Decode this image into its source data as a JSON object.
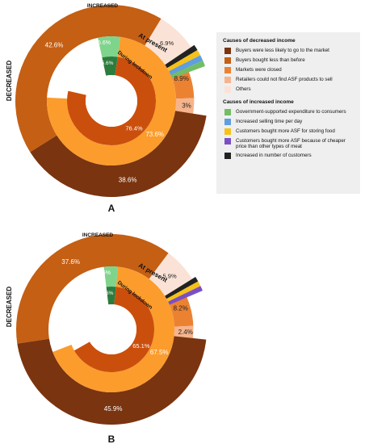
{
  "colors": {
    "less_likely": "#7a3410",
    "bought_less": "#c45f14",
    "markets_closed": "#eb8232",
    "retailers": "#f6b48c",
    "others": "#fae3d6",
    "gov": "#72bd66",
    "selling_time": "#5f9ee0",
    "cheap_meat": "#7b4fc4",
    "customers_stored": "#f5c11a",
    "num_customers": "#222222",
    "middle_orange": "#fb9c2d",
    "inner_dark": "#cb4f0c",
    "light_green": "#7fd48c",
    "dark_green": "#2c7c3e"
  },
  "legend": {
    "decreased_title": "Causes of decreased income",
    "decreased_items": [
      {
        "label": "Buyers were less likely to go to the market",
        "color": "#7a3410"
      },
      {
        "label": "Buyers bought less than before",
        "color": "#c45f14"
      },
      {
        "label": "Markets were closed",
        "color": "#eb8232"
      },
      {
        "label": "Retailers could not find ASF products to sell",
        "color": "#f6b48c"
      },
      {
        "label": "Others",
        "color": "#fae3d6"
      }
    ],
    "increased_title": "Causes of increased income",
    "increased_items": [
      {
        "label": "Government-supported expenditure to consumers",
        "color": "#72bd66"
      },
      {
        "label": "Increased selling time per day",
        "color": "#5f9ee0"
      },
      {
        "label": "Customers bought more ASF for storing food",
        "color": "#f5c11a"
      },
      {
        "label": "Customers bought more ASF because of cheaper  price than other types of meat",
        "color": "#7b4fc4"
      },
      {
        "label": "Increased in number of customers",
        "color": "#222222"
      }
    ]
  },
  "chart_data": [
    {
      "type": "sunburst",
      "panel_label": "A",
      "side_labels": {
        "decreased": "DECREASED",
        "increased": "INCREASED",
        "at_present": "At present",
        "during_lockdown": "During lockdown"
      },
      "outer": [
        {
          "cause": "Buyers were less likely to go to the market",
          "value": 38.6,
          "label": "38.6%"
        },
        {
          "cause": "Buyers bought less than before",
          "value": 42.6,
          "label": "42.6%"
        },
        {
          "cause": "Others",
          "value": 6.9,
          "label": "6.9%"
        },
        {
          "cause": "Markets were closed",
          "value": 8.9,
          "label": "8.9%"
        },
        {
          "cause": "Retailers could not find ASF products to sell",
          "value": 3,
          "label": "3%"
        }
      ],
      "middle": [
        {
          "group": "decreased",
          "value": 73.6,
          "label": "73.6%"
        },
        {
          "group": "increased",
          "value": 5.6,
          "label": "5.6%"
        }
      ],
      "inner": [
        {
          "group": "decreased",
          "value": 76.4,
          "label": "76.4%"
        },
        {
          "group": "increased",
          "value": 5.6,
          "label": "5.6%"
        }
      ]
    },
    {
      "type": "sunburst",
      "panel_label": "B",
      "side_labels": {
        "decreased": "DECREASED",
        "increased": "INCREASED",
        "at_present": "At present",
        "during_lockdown": "During lockdown"
      },
      "outer": [
        {
          "cause": "Buyers were less likely to go to the market",
          "value": 45.9,
          "label": "45.9%"
        },
        {
          "cause": "Buyers bought less than before",
          "value": 37.6,
          "label": "37.6%"
        },
        {
          "cause": "Others",
          "value": 5.9,
          "label": "5.9%"
        },
        {
          "cause": "Markets were closed",
          "value": 8.2,
          "label": "8.2%"
        },
        {
          "cause": "Retailers could not find ASF products to sell",
          "value": 2.4,
          "label": "2.4%"
        }
      ],
      "middle": [
        {
          "group": "decreased",
          "value": 67.5,
          "label": "67.5%"
        },
        {
          "group": "increased",
          "value": 3.6,
          "label": "3.6%"
        }
      ],
      "inner": [
        {
          "group": "decreased",
          "value": 65.1,
          "label": "65.1%"
        },
        {
          "group": "increased",
          "value": 3.6,
          "label": "3.6%"
        }
      ]
    }
  ]
}
